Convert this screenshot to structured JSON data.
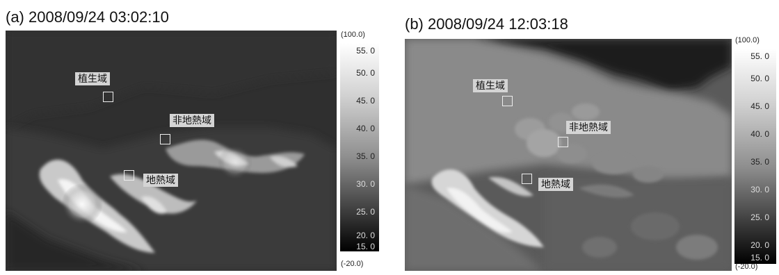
{
  "panels": [
    {
      "caption": "(a) 2008/09/24 03:02:10",
      "labels": {
        "vegetation": "植生域",
        "non_geothermal": "非地熱域",
        "geothermal": "地熱域"
      },
      "scale": {
        "max": "(100.0)",
        "min": "(-20.0)",
        "ticks": [
          "55. 0",
          "50. 0",
          "45. 0",
          "40. 0",
          "35. 0",
          "30. 0",
          "25. 0",
          "20. 0",
          "15. 0"
        ]
      }
    },
    {
      "caption": "(b) 2008/09/24 12:03:18",
      "labels": {
        "vegetation": "植生域",
        "non_geothermal": "非地熱域",
        "geothermal": "地熱域"
      },
      "scale": {
        "max": "(100.0)",
        "min": "(-20.0)",
        "ticks": [
          "55. 0",
          "50. 0",
          "45. 0",
          "40. 0",
          "35. 0",
          "30. 0",
          "25. 0",
          "20. 0",
          "15. 0"
        ]
      }
    }
  ]
}
